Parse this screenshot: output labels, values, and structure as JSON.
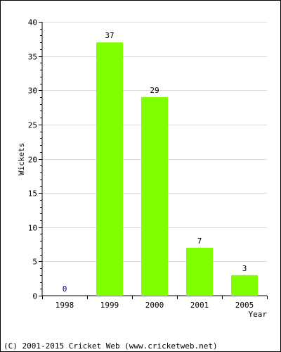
{
  "chart_data": {
    "type": "bar",
    "categories": [
      "1998",
      "1999",
      "2000",
      "2001",
      "2005"
    ],
    "values": [
      0,
      37,
      29,
      7,
      3
    ],
    "data_labels": [
      "0",
      "37",
      "29",
      "7",
      "3"
    ],
    "ylabel": "Wickets",
    "xlabel": "Year",
    "ylim": [
      0,
      40
    ],
    "yticks": [
      0,
      5,
      10,
      15,
      20,
      25,
      30,
      35,
      40
    ],
    "grid": true,
    "bar_color": "#80ff00",
    "zero_label_color": "#000080"
  },
  "footer": {
    "copyright": "(C) 2001-2015 Cricket Web (www.cricketweb.net)"
  }
}
